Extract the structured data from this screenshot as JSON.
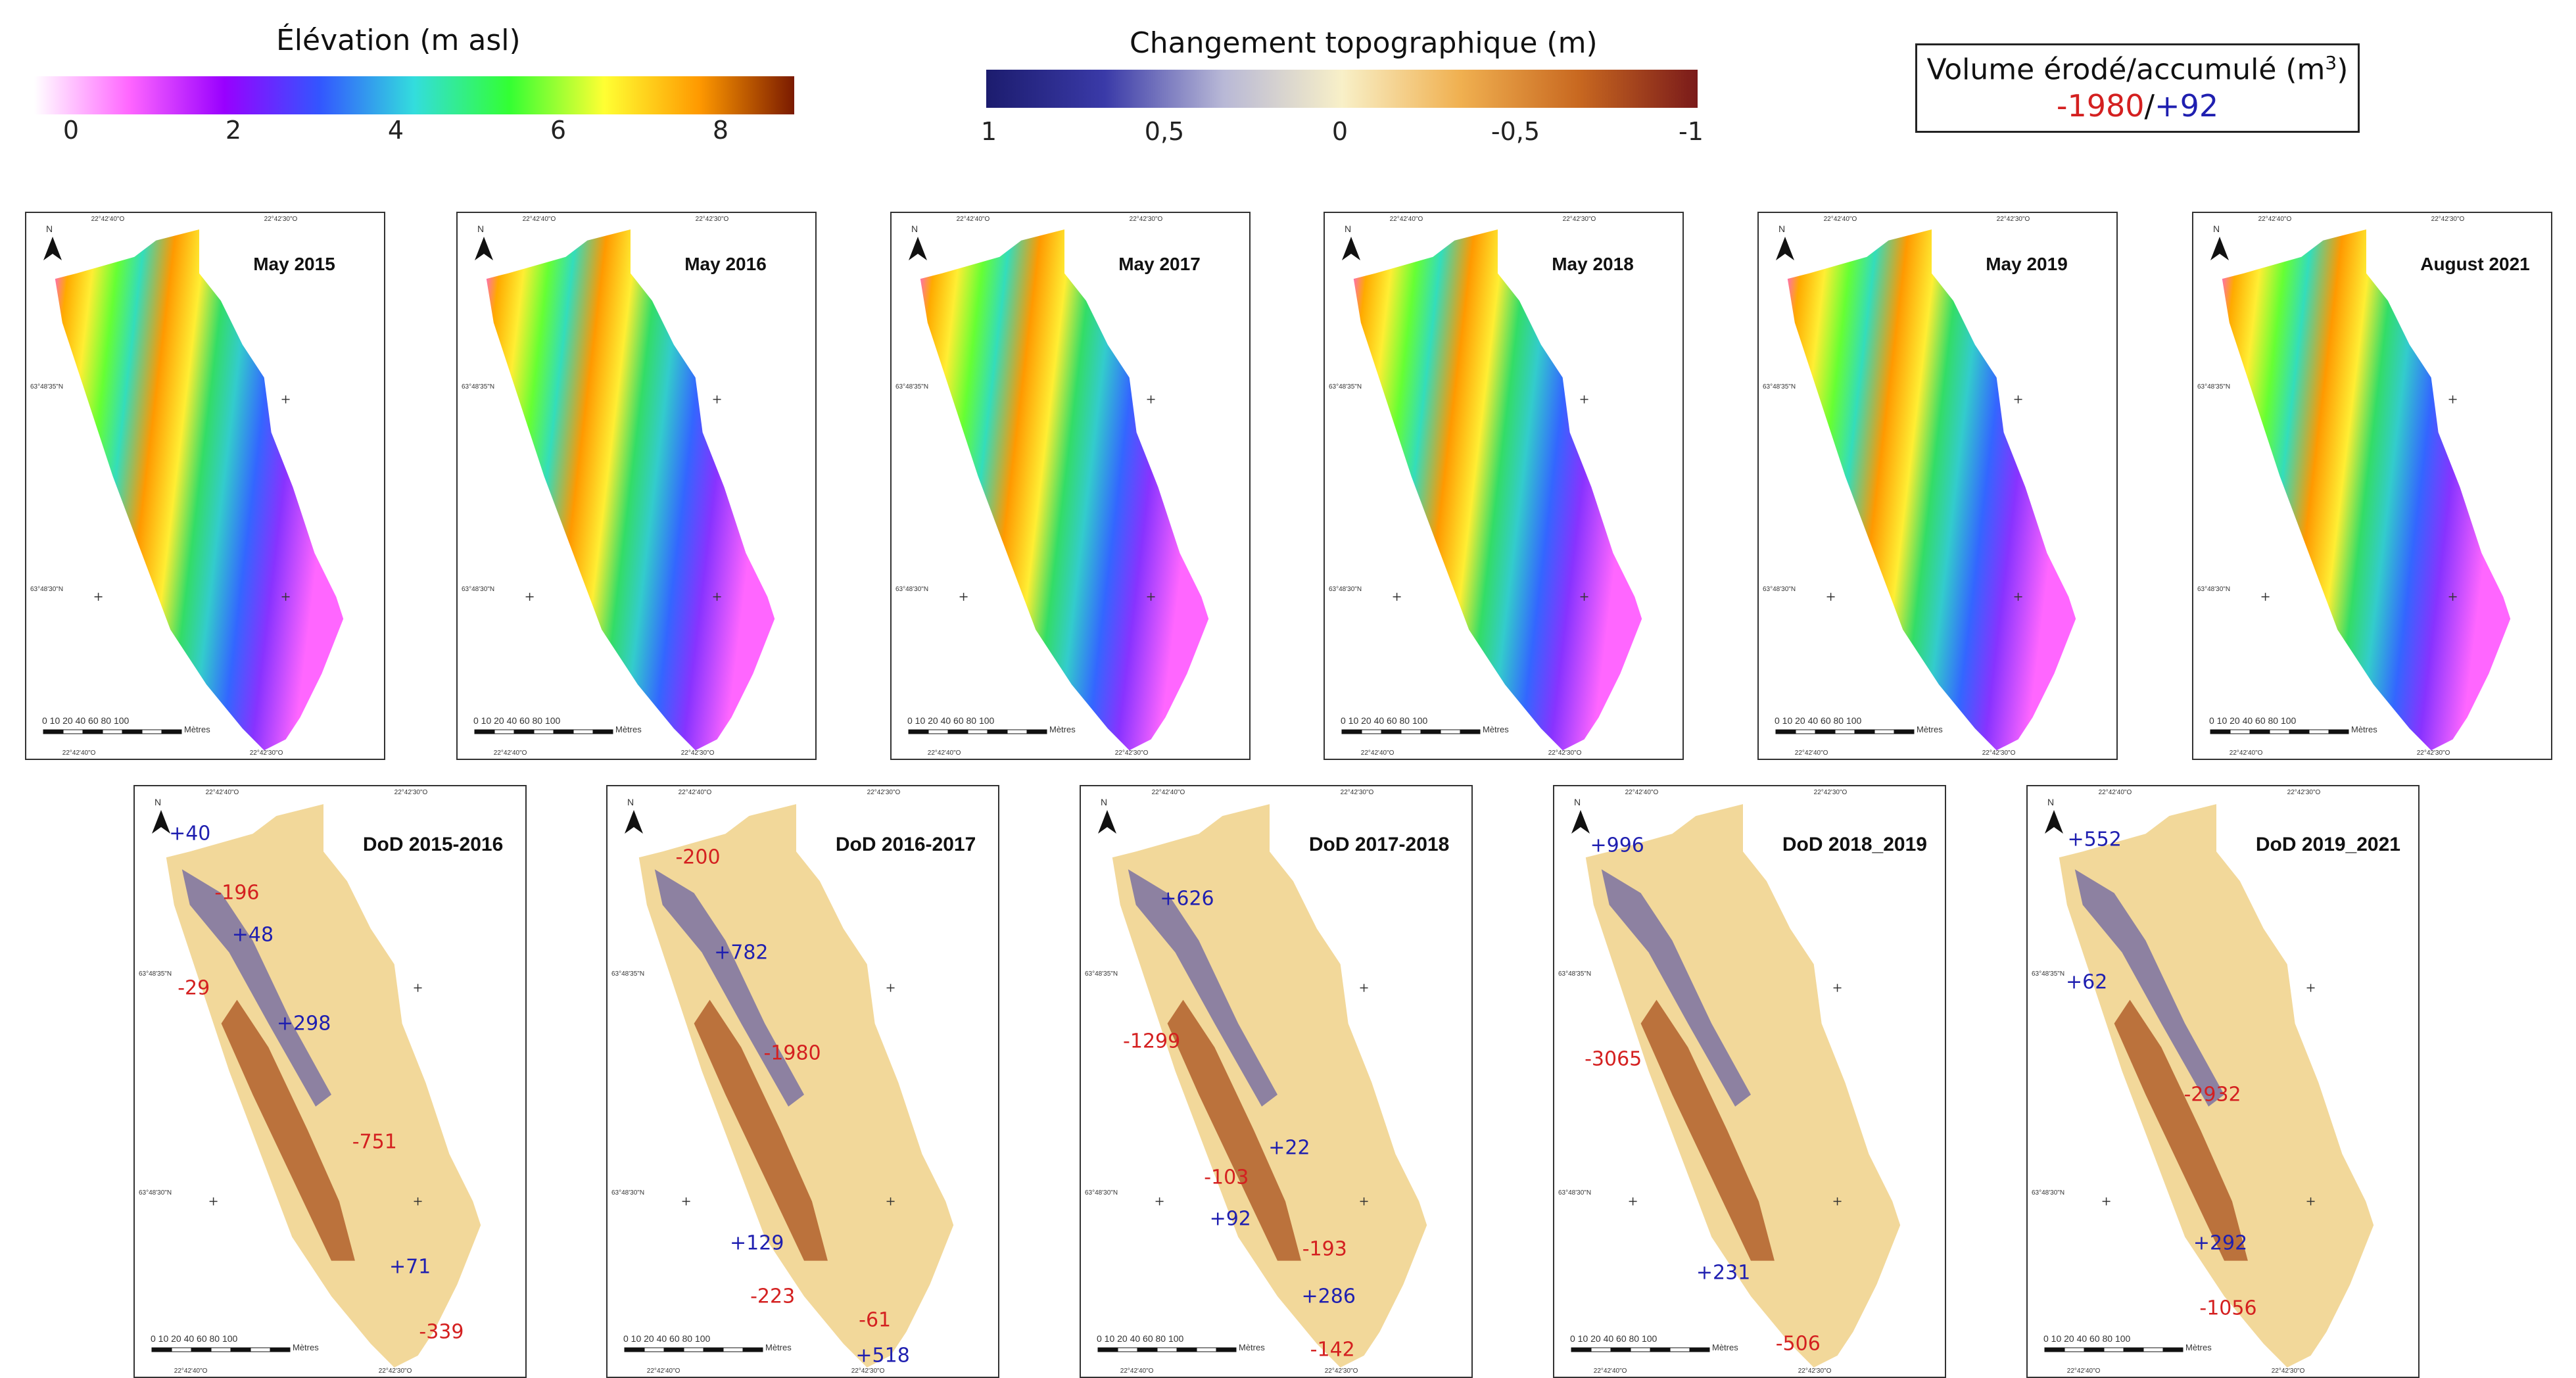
{
  "legend_elevation": {
    "title": "Élévation (m asl)",
    "ticks": [
      "0",
      "2",
      "4",
      "6",
      "8"
    ],
    "colors": [
      "#ffffff",
      "#ff66ff",
      "#9900ff",
      "#3355ff",
      "#33dddd",
      "#33ff33",
      "#ffff33",
      "#ff9900",
      "#7a1a00"
    ]
  },
  "legend_change": {
    "title": "Changement topographique (m)",
    "ticks": [
      "1",
      "0,5",
      "0",
      "-0,5",
      "-1"
    ],
    "colors": [
      "#1c1c6e",
      "#3a3aa8",
      "#b8b8d6",
      "#f8f0c8",
      "#f0b050",
      "#c86820",
      "#7a1a1a"
    ]
  },
  "volume_box": {
    "title": "Volume érodé/accumulé (m",
    "superscript": "3",
    "close": ")",
    "eroded": "-1980",
    "separator": "/",
    "accumulated": "+92"
  },
  "common": {
    "north": "N",
    "lon_left": "22°42'40\"O",
    "lon_right": "22°42'30\"O",
    "lat_top": "63°48'35\"N",
    "lat_bottom": "63°48'30\"N",
    "scale_ticks": "0 10 20    40    60    80    100",
    "scale_unit": "Mètres"
  },
  "elevation_maps": [
    {
      "title": "May 2015"
    },
    {
      "title": "May 2016"
    },
    {
      "title": "May 2017"
    },
    {
      "title": "May 2018"
    },
    {
      "title": "May 2019"
    },
    {
      "title": "August 2021"
    }
  ],
  "dod_maps": [
    {
      "title": "DoD 2015-2016",
      "annotations": [
        {
          "text": "+40",
          "sign": "pos"
        },
        {
          "text": "-196",
          "sign": "neg"
        },
        {
          "text": "+48",
          "sign": "pos"
        },
        {
          "text": "-29",
          "sign": "neg"
        },
        {
          "text": "+298",
          "sign": "pos"
        },
        {
          "text": "-751",
          "sign": "neg"
        },
        {
          "text": "+71",
          "sign": "pos"
        },
        {
          "text": "-339",
          "sign": "neg"
        }
      ]
    },
    {
      "title": "DoD 2016-2017",
      "annotations": [
        {
          "text": "-200",
          "sign": "neg"
        },
        {
          "text": "+782",
          "sign": "pos"
        },
        {
          "text": "-1980",
          "sign": "neg"
        },
        {
          "text": "+129",
          "sign": "pos"
        },
        {
          "text": "-223",
          "sign": "neg"
        },
        {
          "text": "-61",
          "sign": "neg"
        },
        {
          "text": "+518",
          "sign": "pos"
        }
      ]
    },
    {
      "title": "DoD 2017-2018",
      "annotations": [
        {
          "text": "+626",
          "sign": "pos"
        },
        {
          "text": "-1299",
          "sign": "neg"
        },
        {
          "text": "+22",
          "sign": "pos"
        },
        {
          "text": "-103",
          "sign": "neg"
        },
        {
          "text": "+92",
          "sign": "pos"
        },
        {
          "text": "-193",
          "sign": "neg"
        },
        {
          "text": "+286",
          "sign": "pos"
        },
        {
          "text": "-142",
          "sign": "neg"
        }
      ]
    },
    {
      "title": "DoD 2018_2019",
      "annotations": [
        {
          "text": "+996",
          "sign": "pos"
        },
        {
          "text": "-3065",
          "sign": "neg"
        },
        {
          "text": "+231",
          "sign": "pos"
        },
        {
          "text": "-506",
          "sign": "neg"
        }
      ]
    },
    {
      "title": "DoD 2019_2021",
      "annotations": [
        {
          "text": "+552",
          "sign": "pos"
        },
        {
          "text": "+62",
          "sign": "pos"
        },
        {
          "text": "-2932",
          "sign": "neg"
        },
        {
          "text": "+292",
          "sign": "pos"
        },
        {
          "text": "-1056",
          "sign": "neg"
        }
      ]
    }
  ]
}
